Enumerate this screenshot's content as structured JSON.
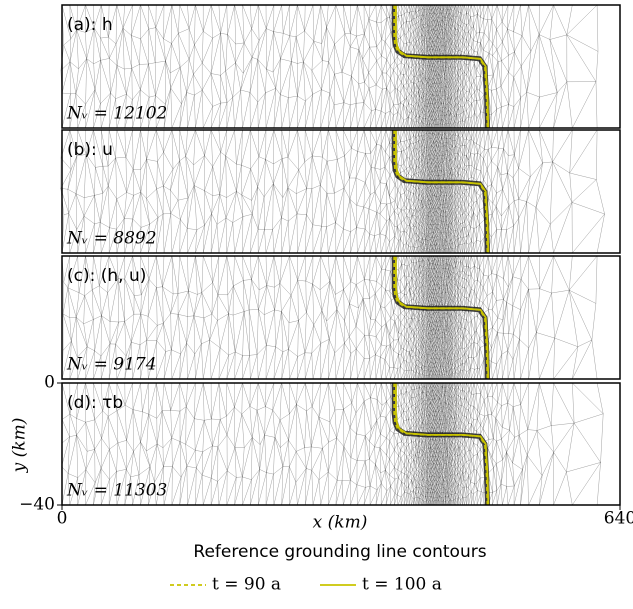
{
  "chart_data": {
    "type": "mesh",
    "panels": [
      {
        "label": "(a): h",
        "nv_label": "Nᵥ = 12102"
      },
      {
        "label": "(b): u",
        "nv_label": "Nᵥ = 8892"
      },
      {
        "label": "(c): (h, u)",
        "nv_label": "Nᵥ = 9174"
      },
      {
        "label": "(d): τb",
        "nv_label": "Nᵥ = 11303"
      }
    ],
    "xlabel": "x (km)",
    "ylabel": "y (km)",
    "xlim": [
      0,
      640
    ],
    "xticks": [
      0,
      640
    ],
    "ylim": [
      -40,
      0
    ],
    "yticks": [
      {
        "value": -40,
        "label": "−40"
      },
      0
    ],
    "legend_title": "Reference grounding line contours",
    "series": [
      {
        "name": "t = 90 a",
        "color": "#c9c400",
        "dash": true,
        "x": [
          381,
          381,
          382,
          385,
          393,
          418,
          458,
          479,
          485,
          487,
          488
        ],
        "y": [
          0,
          -10,
          -13,
          -15,
          -16.5,
          -17,
          -17,
          -17.5,
          -20,
          -30,
          -40
        ]
      },
      {
        "name": "t = 100 a",
        "color": "#c9c400",
        "dash": false,
        "x": [
          383,
          383,
          384,
          387,
          395,
          420,
          460,
          480,
          486,
          488,
          489
        ],
        "y": [
          0,
          -10,
          -13,
          -15,
          -16.5,
          -17,
          -17,
          -17.5,
          -20,
          -30,
          -40
        ]
      }
    ]
  }
}
